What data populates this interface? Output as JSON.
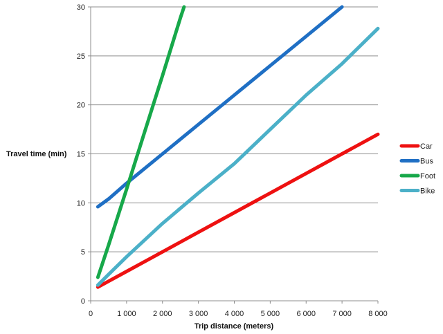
{
  "chart_data": {
    "type": "line",
    "title": "",
    "xlabel": "Trip distance (meters)",
    "ylabel": "Travel time (min)",
    "xlim": [
      0,
      8000
    ],
    "ylim": [
      0,
      30
    ],
    "xticks": [
      0,
      1000,
      2000,
      3000,
      4000,
      5000,
      6000,
      7000,
      8000
    ],
    "xtick_labels": [
      "0",
      "1 000",
      "2 000",
      "3 000",
      "4 000",
      "5 000",
      "6 000",
      "7 000",
      "8 000"
    ],
    "yticks": [
      0,
      5,
      10,
      15,
      20,
      25,
      30
    ],
    "ytick_labels": [
      "0",
      "5",
      "10",
      "15",
      "20",
      "25",
      "30"
    ],
    "grid": "horizontal",
    "legend": "right",
    "series": [
      {
        "name": "Car",
        "color": "#ee1111",
        "points": [
          [
            200,
            1.4
          ],
          [
            500,
            2.0
          ],
          [
            1000,
            3.0
          ],
          [
            2000,
            5.0
          ],
          [
            3000,
            7.0
          ],
          [
            4000,
            9.0
          ],
          [
            5000,
            11.0
          ],
          [
            6000,
            13.0
          ],
          [
            7000,
            15.0
          ],
          [
            8000,
            17.0
          ]
        ]
      },
      {
        "name": "Bus",
        "color": "#1f6fc4",
        "points": [
          [
            200,
            9.6
          ],
          [
            500,
            10.4
          ],
          [
            1000,
            12.0
          ],
          [
            2000,
            15.0
          ],
          [
            3000,
            18.0
          ],
          [
            4000,
            21.0
          ],
          [
            5000,
            24.0
          ],
          [
            6000,
            27.0
          ],
          [
            7000,
            30.0
          ]
        ]
      },
      {
        "name": "Foot",
        "color": "#17a84a",
        "points": [
          [
            200,
            2.4
          ],
          [
            500,
            5.7
          ],
          [
            1000,
            11.4
          ],
          [
            1500,
            17.2
          ],
          [
            2000,
            23.0
          ],
          [
            2500,
            28.9
          ],
          [
            2600,
            30.0
          ]
        ]
      },
      {
        "name": "Bike",
        "color": "#4bb0c8",
        "points": [
          [
            200,
            1.6
          ],
          [
            500,
            2.7
          ],
          [
            1000,
            4.5
          ],
          [
            2000,
            7.9
          ],
          [
            3000,
            11.0
          ],
          [
            4000,
            14.0
          ],
          [
            5000,
            17.5
          ],
          [
            6000,
            21.0
          ],
          [
            7000,
            24.2
          ],
          [
            8000,
            27.8
          ]
        ]
      }
    ]
  }
}
